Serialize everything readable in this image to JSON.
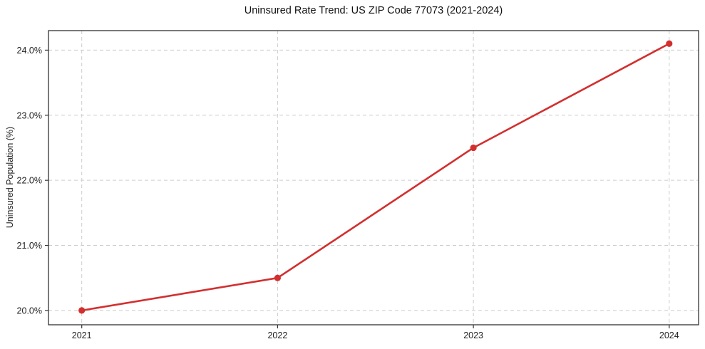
{
  "chart_data": {
    "type": "line",
    "title": "Uninsured Rate Trend: US ZIP Code 77073 (2021-2024)",
    "xlabel": "",
    "ylabel": "Uninsured Population (%)",
    "x": [
      2021,
      2022,
      2023,
      2024
    ],
    "values": [
      20.0,
      20.5,
      22.5,
      24.1
    ],
    "xticks": [
      {
        "value": 2021,
        "label": "2021"
      },
      {
        "value": 2022,
        "label": "2022"
      },
      {
        "value": 2023,
        "label": "2023"
      },
      {
        "value": 2024,
        "label": "2024"
      }
    ],
    "yticks": [
      {
        "value": 20.0,
        "label": "20.0%"
      },
      {
        "value": 21.0,
        "label": "21.0%"
      },
      {
        "value": 22.0,
        "label": "22.0%"
      },
      {
        "value": 23.0,
        "label": "23.0%"
      },
      {
        "value": 24.0,
        "label": "24.0%"
      }
    ],
    "xlim": [
      2020.83,
      2024.15
    ],
    "ylim": [
      19.78,
      24.3
    ],
    "grid": true,
    "grid_style": "dashed",
    "legend_position": "none",
    "marker": "circle",
    "line_color": "#d32f2f",
    "grid_color": "#cccccc",
    "frame_color": "#333333",
    "tick_color": "#333333",
    "title_color": "#111111"
  }
}
